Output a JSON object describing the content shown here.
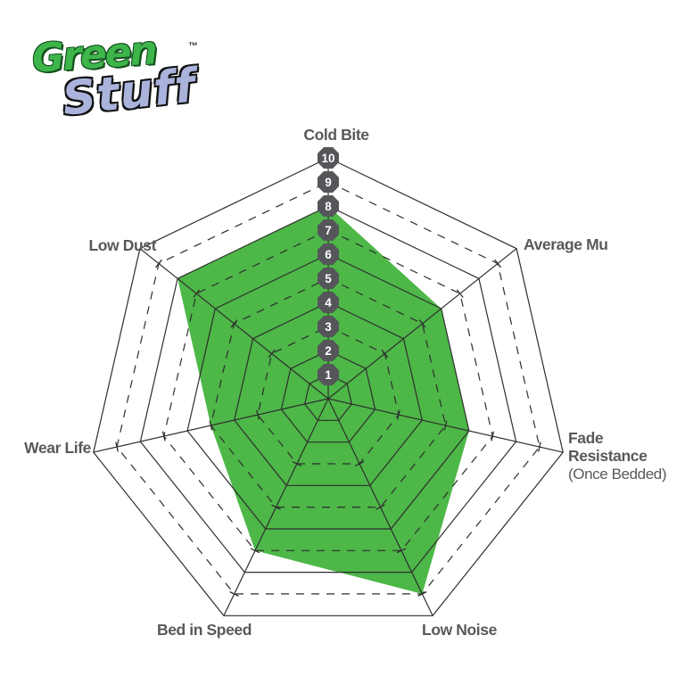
{
  "logo": {
    "green": "Green",
    "stuff": "Stuff",
    "tm": "™"
  },
  "chart_data": {
    "type": "radar",
    "title": "",
    "axes": [
      {
        "label": "Cold Bite",
        "value": 8
      },
      {
        "label": "Average Mu",
        "value": 6
      },
      {
        "label": "Fade Resistance",
        "sublabel": "(Once Bedded)",
        "value": 6
      },
      {
        "label": "Low Noise",
        "value": 9
      },
      {
        "label": "Bed in Speed",
        "value": 7
      },
      {
        "label": "Wear Life",
        "value": 5
      },
      {
        "label": "Low Dust",
        "value": 8
      }
    ],
    "scale": {
      "min": 0,
      "max": 10,
      "ring_labels": [
        "1",
        "2",
        "3",
        "4",
        "5",
        "6",
        "7",
        "8",
        "9",
        "10"
      ],
      "dashed_rings": [
        3,
        5,
        7,
        9
      ]
    },
    "grid": "heptagon rings, radial spokes, scale badges along top axis",
    "legend": "none",
    "colors": {
      "fill": "#4db748",
      "grid_line": "#2e2e2e",
      "axis_label": "#58595b",
      "badge_fill": "#55565a",
      "badge_text": "#ffffff"
    }
  }
}
